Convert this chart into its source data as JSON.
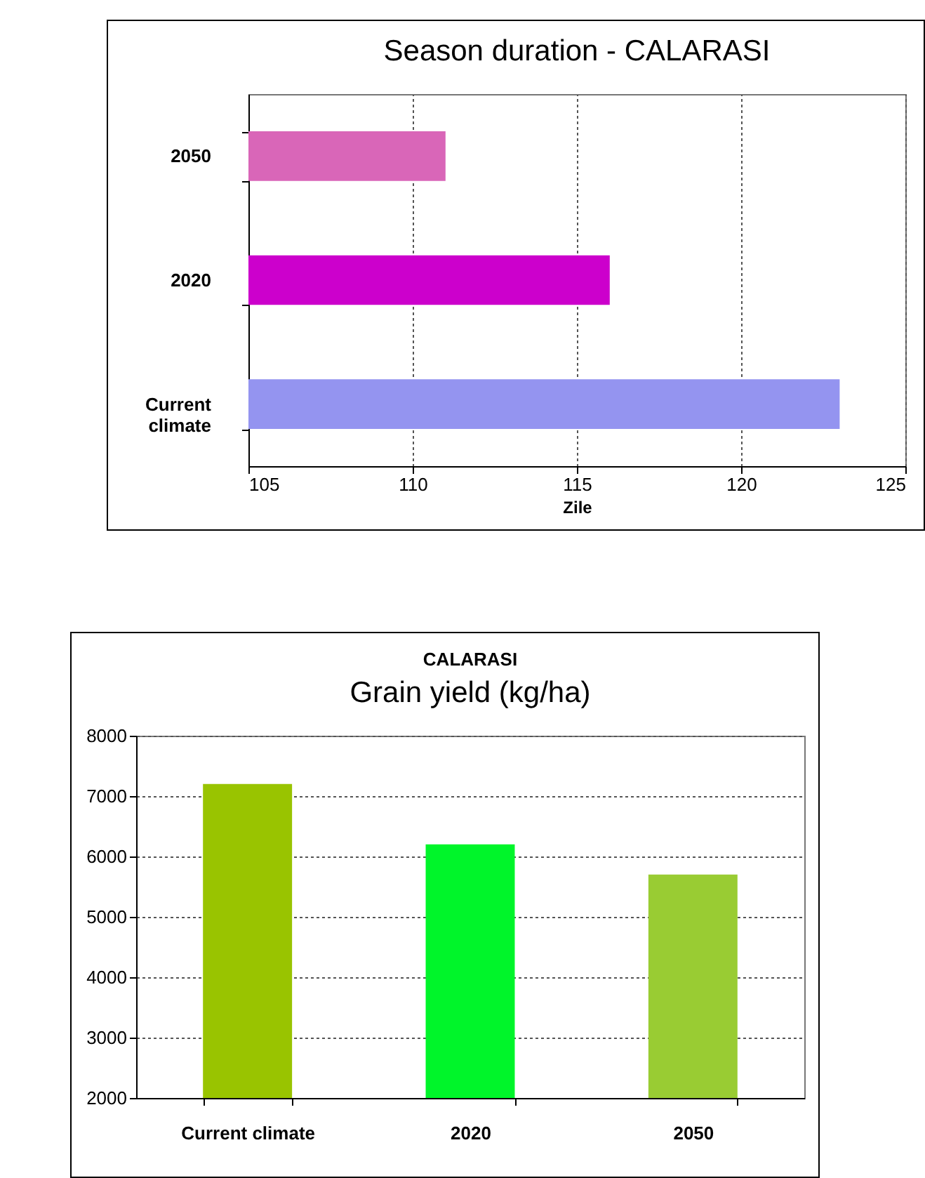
{
  "chart_data": [
    {
      "type": "bar",
      "orientation": "horizontal",
      "title": "Season   duration - CALARASI",
      "xlabel": "Zile",
      "categories": [
        "2050",
        "2020",
        "Current climate"
      ],
      "values": [
        111,
        116,
        123
      ],
      "colors": [
        "#d966b8",
        "#cc00cc",
        "#9494f0"
      ],
      "xlim": [
        105,
        125
      ],
      "xticks": [
        105,
        110,
        115,
        120,
        125
      ],
      "grid": "x"
    },
    {
      "type": "bar",
      "title": "CALARASI",
      "subtitle": "Grain yield (kg/ha)",
      "categories": [
        "Current climate",
        "2020",
        "2050"
      ],
      "values": [
        7200,
        6200,
        5700
      ],
      "colors": [
        "#99c400",
        "#00f52a",
        "#99cc33"
      ],
      "ylim": [
        2000,
        8000
      ],
      "yticks": [
        2000,
        3000,
        4000,
        5000,
        6000,
        7000,
        8000
      ],
      "grid": "y"
    }
  ]
}
